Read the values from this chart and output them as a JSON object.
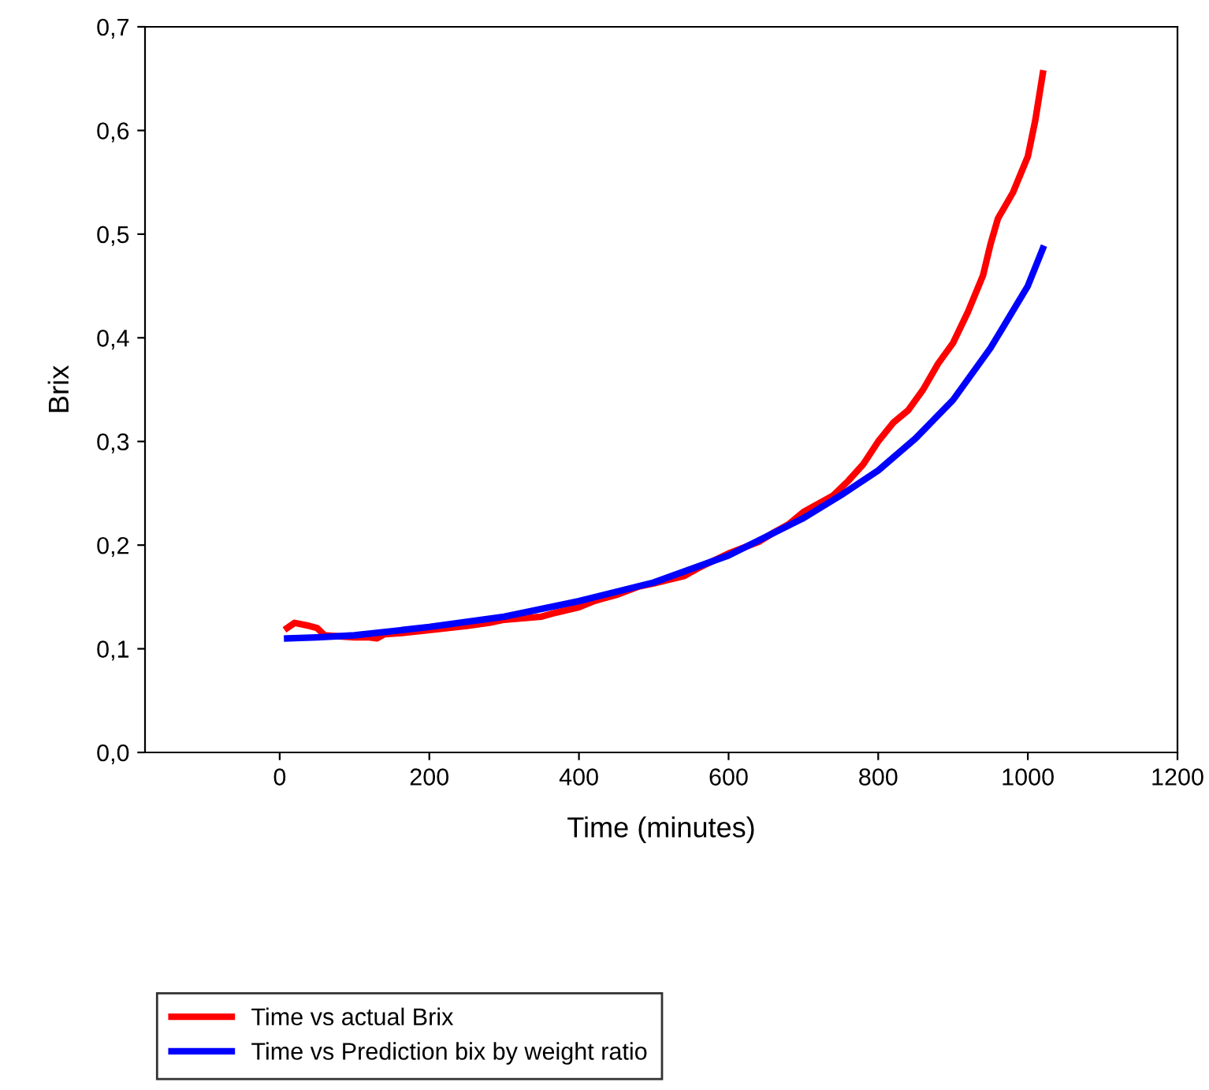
{
  "chart_data": {
    "type": "line",
    "xlabel": "Time (minutes)",
    "ylabel": "Brix",
    "xlim": [
      -180,
      1200
    ],
    "xticks": [
      0,
      200,
      400,
      600,
      800,
      1000,
      1200
    ],
    "ylim": [
      0,
      0.7
    ],
    "yticks": [
      {
        "value": 0,
        "label": "0,0"
      },
      {
        "value": 0.1,
        "label": "0,1"
      },
      {
        "value": 0.2,
        "label": "0,2"
      },
      {
        "value": 0.3,
        "label": "0,3"
      },
      {
        "value": 0.4,
        "label": "0,4"
      },
      {
        "value": 0.5,
        "label": "0,5"
      },
      {
        "value": 0.6,
        "label": "0,6"
      },
      {
        "value": 0.7,
        "label": "0,7"
      }
    ],
    "grid": false,
    "legend": "bottom",
    "marker": "none",
    "line_style": "solid",
    "series": [
      {
        "name": "Time vs actual Brix",
        "color": "#ff0000",
        "x": [
          10,
          20,
          40,
          50,
          60,
          80,
          100,
          120,
          130,
          140,
          160,
          200,
          250,
          280,
          300,
          350,
          370,
          400,
          420,
          450,
          480,
          500,
          540,
          560,
          600,
          640,
          660,
          680,
          700,
          740,
          760,
          780,
          800,
          820,
          840,
          860,
          880,
          900,
          920,
          940,
          950,
          960,
          980,
          1000,
          1010,
          1020
        ],
        "values": [
          0.12,
          0.125,
          0.122,
          0.12,
          0.113,
          0.112,
          0.111,
          0.111,
          0.11,
          0.114,
          0.115,
          0.118,
          0.122,
          0.125,
          0.128,
          0.131,
          0.135,
          0.14,
          0.146,
          0.152,
          0.16,
          0.163,
          0.17,
          0.178,
          0.192,
          0.203,
          0.212,
          0.22,
          0.232,
          0.248,
          0.262,
          0.278,
          0.3,
          0.318,
          0.33,
          0.35,
          0.375,
          0.395,
          0.425,
          0.46,
          0.49,
          0.515,
          0.54,
          0.575,
          0.61,
          0.655
        ]
      },
      {
        "name": "Time vs Prediction bix by weight ratio",
        "color": "#0000ff",
        "x": [
          10,
          50,
          100,
          200,
          300,
          400,
          500,
          600,
          700,
          750,
          800,
          850,
          900,
          950,
          1000,
          1020
        ],
        "values": [
          0.11,
          0.111,
          0.113,
          0.121,
          0.131,
          0.146,
          0.164,
          0.19,
          0.226,
          0.248,
          0.272,
          0.303,
          0.34,
          0.39,
          0.45,
          0.486
        ]
      }
    ]
  }
}
